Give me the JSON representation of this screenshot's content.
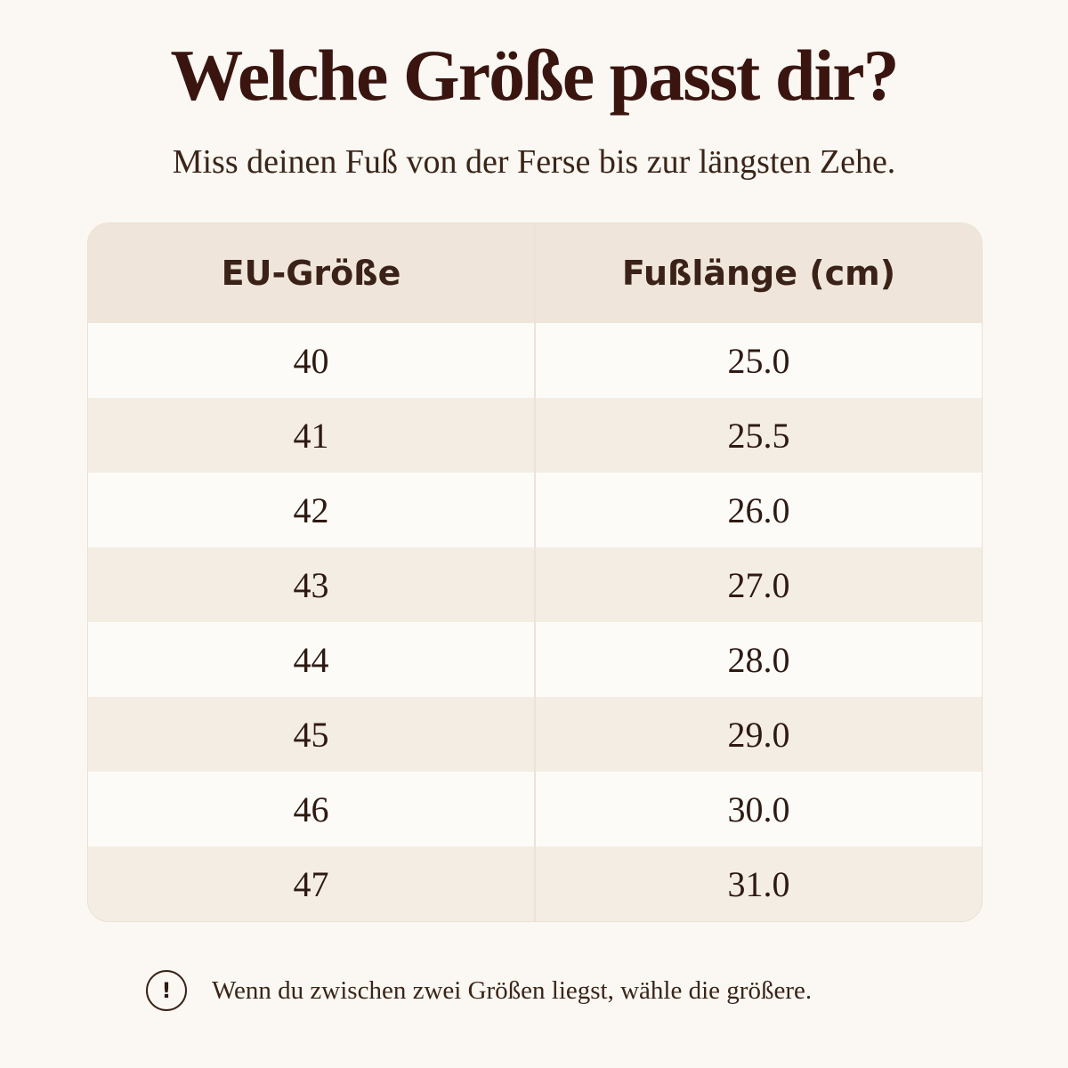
{
  "header": {
    "title": "Welche Größe passt dir?",
    "subtitle": "Miss deinen Fuß von der Ferse bis zur längsten Zehe."
  },
  "table": {
    "columns": [
      "EU-Größe",
      "Fußlänge (cm)"
    ],
    "rows": [
      [
        "40",
        "25.0"
      ],
      [
        "41",
        "25.5"
      ],
      [
        "42",
        "26.0"
      ],
      [
        "43",
        "27.0"
      ],
      [
        "44",
        "28.0"
      ],
      [
        "45",
        "29.0"
      ],
      [
        "46",
        "30.0"
      ],
      [
        "47",
        "31.0"
      ]
    ]
  },
  "note": {
    "icon": "!",
    "text": "Wenn du zwischen zwei Größen liegst, wähle die größere."
  }
}
